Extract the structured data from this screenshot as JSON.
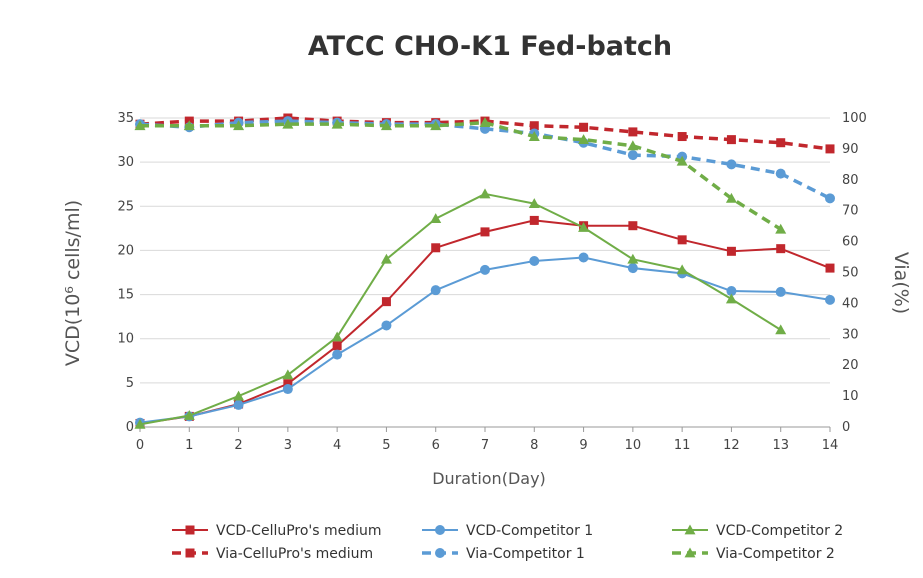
{
  "chart_data": {
    "type": "line",
    "title": "ATCC CHO-K1 Fed-batch",
    "xlabel": "Duration(Day)",
    "ylabel": "VCD(10⁶ cells/ml)",
    "y2label": "Via(%)",
    "x": [
      0,
      1,
      2,
      3,
      4,
      5,
      6,
      7,
      8,
      9,
      10,
      11,
      12,
      13,
      14
    ],
    "xlim": [
      0,
      14
    ],
    "ylim": [
      0,
      35
    ],
    "y2lim": [
      0,
      100
    ],
    "yticks": [
      "0",
      "5",
      "10",
      "15",
      "20",
      "25",
      "30",
      "35"
    ],
    "y2ticks": [
      "0",
      "10",
      "20",
      "30",
      "40",
      "50",
      "60",
      "70",
      "80",
      "90",
      "100"
    ],
    "xticks": [
      "0",
      "1",
      "2",
      "3",
      "4",
      "5",
      "6",
      "7",
      "8",
      "9",
      "10",
      "11",
      "12",
      "13",
      "14"
    ],
    "grid": "horizontal",
    "legend_position": "bottom",
    "series": [
      {
        "name": "VCD-CelluPro's medium",
        "axis": "left",
        "style": "solid",
        "marker": "square",
        "color": "#c1272d",
        "x": [
          0,
          1,
          2,
          3,
          4,
          5,
          6,
          7,
          8,
          9,
          10,
          11,
          12,
          13,
          14
        ],
        "values": [
          0.4,
          1.2,
          2.6,
          4.9,
          9.2,
          14.2,
          20.3,
          22.1,
          23.4,
          22.8,
          22.8,
          21.2,
          19.9,
          20.2,
          18.0
        ]
      },
      {
        "name": "VCD-Competitor 1",
        "axis": "left",
        "style": "solid",
        "marker": "circle",
        "color": "#5b9bd5",
        "x": [
          0,
          1,
          2,
          3,
          4,
          5,
          6,
          7,
          8,
          9,
          10,
          11,
          12,
          13,
          14
        ],
        "values": [
          0.5,
          1.2,
          2.5,
          4.3,
          8.2,
          11.5,
          15.5,
          17.8,
          18.8,
          19.2,
          18.0,
          17.4,
          15.4,
          15.3,
          14.4
        ]
      },
      {
        "name": "VCD-Competitor 2",
        "axis": "left",
        "style": "solid",
        "marker": "triangle",
        "color": "#70ad47",
        "x": [
          0,
          1,
          2,
          3,
          4,
          5,
          6,
          7,
          8,
          9,
          10,
          11,
          12,
          13
        ],
        "values": [
          0.3,
          1.3,
          3.5,
          5.9,
          10.2,
          19.0,
          23.6,
          26.4,
          25.3,
          22.6,
          19.0,
          17.8,
          14.5,
          11.0
        ]
      },
      {
        "name": "Via-CelluPro's medium",
        "axis": "right",
        "style": "dashed",
        "marker": "square",
        "color": "#c1272d",
        "x": [
          0,
          1,
          2,
          3,
          4,
          5,
          6,
          7,
          8,
          9,
          10,
          11,
          12,
          13,
          14
        ],
        "values": [
          98,
          99,
          99,
          100,
          99,
          98.5,
          98.5,
          99,
          97.5,
          97,
          95.5,
          94,
          93,
          92,
          90
        ]
      },
      {
        "name": "Via-Competitor 1",
        "axis": "right",
        "style": "dashed",
        "marker": "circle",
        "color": "#5b9bd5",
        "x": [
          0,
          1,
          2,
          3,
          4,
          5,
          6,
          7,
          8,
          9,
          10,
          11,
          12,
          13,
          14
        ],
        "values": [
          98,
          97,
          98.5,
          99,
          98.5,
          98,
          98,
          96.5,
          95,
          92,
          88,
          87.5,
          85,
          82,
          74
        ]
      },
      {
        "name": "Via-Competitor 2",
        "axis": "right",
        "style": "dashed",
        "marker": "triangle",
        "color": "#70ad47",
        "x": [
          0,
          1,
          2,
          3,
          4,
          5,
          6,
          7,
          8,
          9,
          10,
          11,
          12,
          13
        ],
        "values": [
          97.5,
          97.5,
          97.5,
          98,
          98,
          97.5,
          97.5,
          98.5,
          94,
          93,
          91,
          86,
          74,
          64
        ]
      }
    ]
  }
}
